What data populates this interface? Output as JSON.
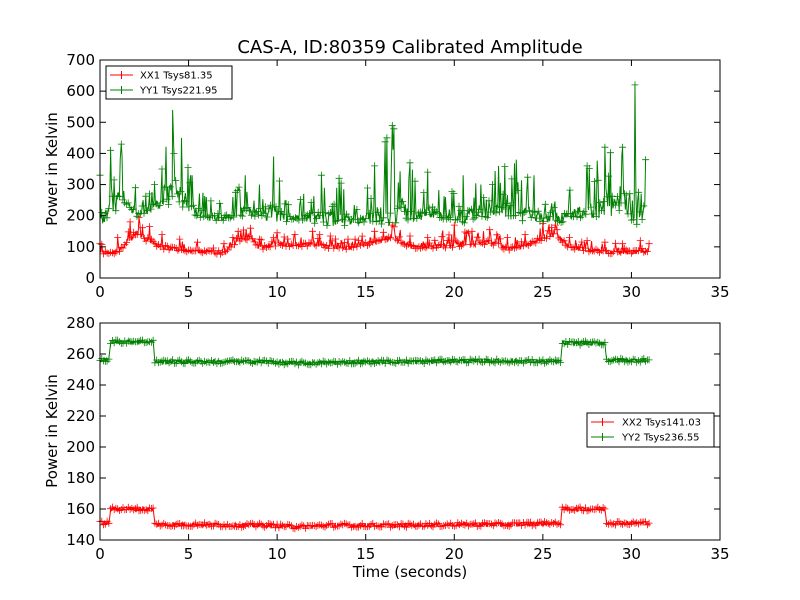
{
  "figure_title": "CAS-A, ID:80359 Calibrated Amplitude",
  "colors": {
    "red": "#ff0000",
    "green": "#008000",
    "axes": "#000000"
  },
  "chart_data": [
    {
      "type": "line",
      "marker": "plus",
      "title": "CAS-A, ID:80359 Calibrated Amplitude",
      "xlabel": "",
      "ylabel": "Power in Kelvin",
      "xlim": [
        0,
        35
      ],
      "ylim": [
        0,
        700
      ],
      "xticks": [
        0,
        5,
        10,
        15,
        20,
        25,
        30,
        35
      ],
      "yticks": [
        0,
        100,
        200,
        300,
        400,
        500,
        600,
        700
      ],
      "grid": false,
      "legend_position": "top-left",
      "series": [
        {
          "name": "XX1 Tsys81.35",
          "color": "#ff0000",
          "x": [
            0.0,
            1.0,
            1.7,
            2.2,
            2.8,
            3.5,
            4.5,
            5.5,
            7.0,
            7.8,
            8.5,
            9.0,
            10.0,
            11.0,
            12.0,
            13.0,
            14.0,
            15.5,
            16.5,
            17.5,
            18.5,
            20.0,
            21.0,
            22.0,
            23.0,
            24.0,
            25.0,
            25.7,
            26.5,
            27.5,
            28.5,
            29.5,
            30.5,
            31.0
          ],
          "y": [
            80,
            85,
            120,
            140,
            120,
            100,
            90,
            85,
            80,
            120,
            130,
            95,
            110,
            105,
            110,
            100,
            95,
            115,
            130,
            100,
            95,
            110,
            110,
            115,
            95,
            100,
            130,
            140,
            100,
            90,
            85,
            80,
            85,
            80
          ],
          "max": [
            110,
            130,
            180,
            195,
            165,
            140,
            125,
            115,
            110,
            150,
            160,
            125,
            145,
            140,
            150,
            135,
            125,
            150,
            170,
            135,
            130,
            170,
            150,
            155,
            130,
            140,
            175,
            170,
            130,
            120,
            115,
            110,
            120,
            110
          ]
        },
        {
          "name": "YY1 Tsys221.95",
          "color": "#008000",
          "x": [
            0.0,
            0.6,
            1.2,
            2.0,
            2.8,
            3.5,
            4.1,
            4.6,
            5.2,
            6.0,
            6.8,
            7.5,
            8.2,
            9.0,
            9.8,
            10.5,
            11.5,
            12.5,
            13.5,
            14.5,
            15.5,
            16.5,
            17.5,
            18.5,
            19.5,
            20.5,
            21.5,
            22.5,
            23.5,
            24.5,
            25.5,
            26.5,
            27.5,
            28.5,
            29.5,
            30.2,
            30.8
          ],
          "y": [
            190,
            230,
            240,
            210,
            220,
            240,
            280,
            260,
            220,
            200,
            190,
            200,
            215,
            210,
            205,
            190,
            190,
            195,
            185,
            180,
            200,
            220,
            210,
            205,
            200,
            195,
            210,
            215,
            210,
            205,
            180,
            200,
            215,
            225,
            240,
            235,
            215
          ],
          "max": [
            330,
            410,
            430,
            290,
            270,
            350,
            540,
            450,
            330,
            260,
            240,
            260,
            330,
            300,
            390,
            250,
            270,
            330,
            320,
            220,
            360,
            490,
            370,
            340,
            260,
            330,
            300,
            360,
            380,
            330,
            240,
            280,
            360,
            420,
            420,
            620,
            380
          ]
        }
      ]
    },
    {
      "type": "line",
      "marker": "plus",
      "title": "",
      "xlabel": "Time (seconds)",
      "ylabel": "Power in Kelvin",
      "xlim": [
        0,
        35
      ],
      "ylim": [
        140,
        280
      ],
      "xticks": [
        0,
        5,
        10,
        15,
        20,
        25,
        30,
        35
      ],
      "yticks": [
        140,
        160,
        180,
        200,
        220,
        240,
        260,
        280
      ],
      "grid": false,
      "legend_position": "center-right",
      "series": [
        {
          "name": "XX2 Tsys141.03",
          "color": "#ff0000",
          "x": [
            0.0,
            0.5,
            0.6,
            3.0,
            3.1,
            5.0,
            8.0,
            9.5,
            11.0,
            13.0,
            15.0,
            18.0,
            20.0,
            23.0,
            26.0,
            26.1,
            28.5,
            28.6,
            31.0
          ],
          "y": [
            151,
            151,
            160,
            160,
            150,
            150,
            149.5,
            149.5,
            148.5,
            149.5,
            149.5,
            149.5,
            150,
            150,
            151,
            160,
            160,
            151,
            151
          ],
          "noise": 1.3
        },
        {
          "name": "YY2 Tsys236.55",
          "color": "#008000",
          "x": [
            0.0,
            0.5,
            0.6,
            3.0,
            3.1,
            5.0,
            8.0,
            9.5,
            11.0,
            13.0,
            15.0,
            18.0,
            20.0,
            23.0,
            26.0,
            26.1,
            28.5,
            28.6,
            31.0
          ],
          "y": [
            256,
            256,
            268,
            268,
            255,
            255,
            255,
            255,
            254,
            254.5,
            255,
            255,
            255.5,
            255.5,
            255,
            267,
            267,
            256,
            256
          ],
          "noise": 1.3
        }
      ]
    }
  ]
}
